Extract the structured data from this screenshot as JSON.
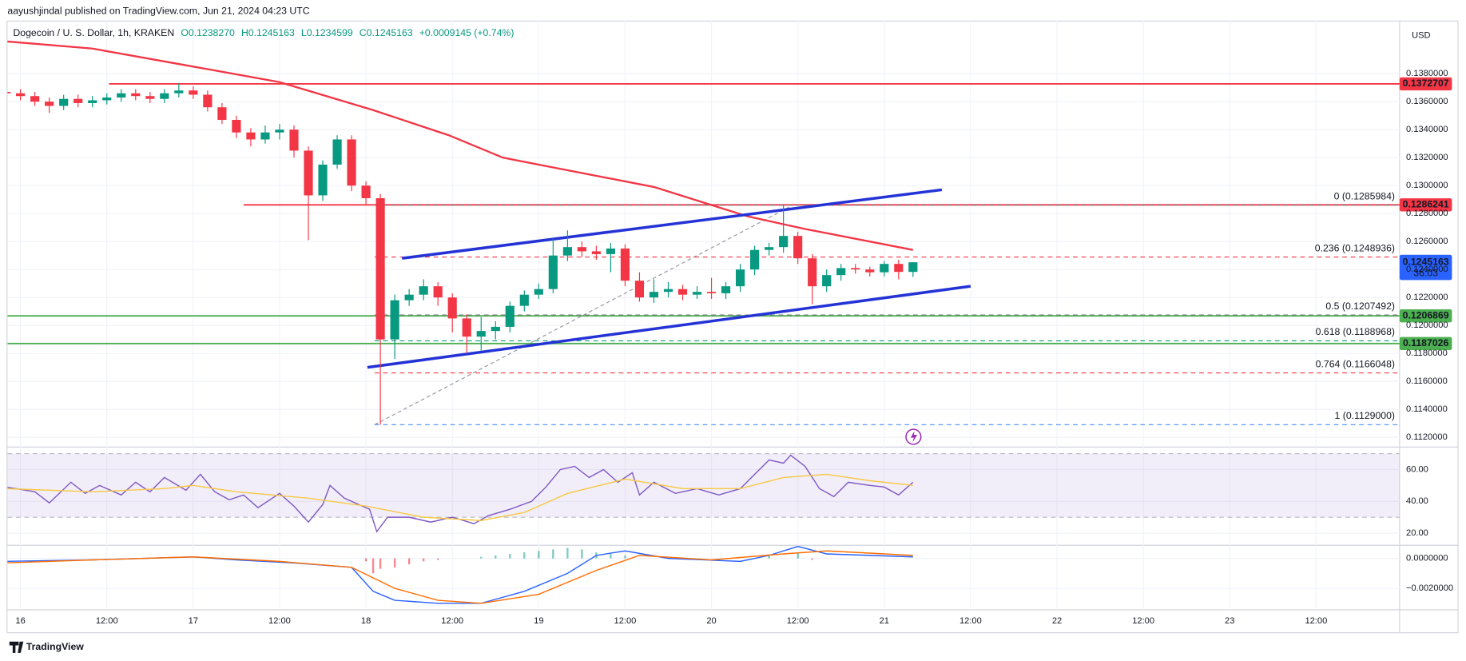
{
  "header": {
    "byline": "aayushjindal published on TradingView.com, Jun 21, 2024 04:23 UTC",
    "brand": "TradingView"
  },
  "chart_data": [
    {
      "type": "candlestick",
      "title": "Dogecoin / U. S. Dollar, 1h, KRAKEN",
      "ohlc": [
        "O0.1238270",
        "H0.1245163",
        "L0.1234599",
        "C0.1245163",
        "+0.0009145 (+0.74%)"
      ],
      "currency": "USD",
      "x": [
        -2,
        0,
        2,
        4,
        6,
        8,
        10,
        12,
        14,
        16,
        18,
        20,
        22,
        24,
        26,
        28,
        30,
        32,
        34,
        36,
        38,
        40,
        42,
        44,
        46,
        48,
        50,
        52,
        54,
        56,
        58,
        60,
        62,
        64,
        66,
        68,
        70,
        72,
        74,
        76,
        78,
        80,
        82,
        84,
        86,
        88,
        90,
        92,
        94,
        96,
        98,
        100,
        102,
        104,
        106,
        108,
        110,
        112,
        114,
        116,
        118,
        120,
        122,
        124
      ],
      "open": [
        0.1367,
        0.1366,
        0.1364,
        0.136,
        0.1357,
        0.1362,
        0.1359,
        0.1361,
        0.1363,
        0.1366,
        0.1364,
        0.1362,
        0.1366,
        0.1368,
        0.1365,
        0.1356,
        0.1347,
        0.1338,
        0.1333,
        0.1338,
        0.134,
        0.1325,
        0.1293,
        0.1315,
        0.1333,
        0.13,
        0.1291,
        0.119,
        0.1218,
        0.1222,
        0.1228,
        0.122,
        0.1205,
        0.1192,
        0.1196,
        0.1199,
        0.1214,
        0.1222,
        0.1226,
        0.125,
        0.1256,
        0.1253,
        0.1251,
        0.1255,
        0.1232,
        0.122,
        0.1224,
        0.1226,
        0.1222,
        0.1224,
        0.1223,
        0.1228,
        0.124,
        0.1254,
        0.1256,
        0.1264,
        0.1248,
        0.1228,
        0.1236,
        0.1241,
        0.124,
        0.1238,
        0.1244,
        0.123827
      ],
      "high": [
        0.137,
        0.1369,
        0.1367,
        0.1363,
        0.1365,
        0.1365,
        0.1364,
        0.1366,
        0.1369,
        0.1369,
        0.1367,
        0.1369,
        0.1373,
        0.1371,
        0.1368,
        0.1359,
        0.135,
        0.1341,
        0.1343,
        0.1344,
        0.1343,
        0.1328,
        0.1318,
        0.1336,
        0.1336,
        0.1303,
        0.1294,
        0.1222,
        0.1226,
        0.1233,
        0.1231,
        0.1223,
        0.1208,
        0.1206,
        0.1203,
        0.1217,
        0.1225,
        0.123,
        0.1262,
        0.1268,
        0.126,
        0.1257,
        0.1259,
        0.1258,
        0.1238,
        0.1233,
        0.1231,
        0.1229,
        0.1228,
        0.1234,
        0.1231,
        0.1244,
        0.1257,
        0.1259,
        0.1286,
        0.1267,
        0.1251,
        0.124,
        0.1244,
        0.1244,
        0.1242,
        0.1246,
        0.1247,
        0.1245163
      ],
      "low": [
        0.1363,
        0.1361,
        0.1357,
        0.1352,
        0.1354,
        0.1356,
        0.1356,
        0.1358,
        0.136,
        0.1361,
        0.1359,
        0.1359,
        0.1363,
        0.1362,
        0.1353,
        0.1344,
        0.1334,
        0.1328,
        0.133,
        0.1333,
        0.132,
        0.1261,
        0.1289,
        0.1312,
        0.1296,
        0.1286,
        0.1129,
        0.1176,
        0.1214,
        0.1218,
        0.1214,
        0.1195,
        0.118,
        0.1182,
        0.119,
        0.1195,
        0.121,
        0.1219,
        0.1223,
        0.1246,
        0.1249,
        0.1247,
        0.1238,
        0.1228,
        0.1217,
        0.1216,
        0.122,
        0.1218,
        0.1219,
        0.1219,
        0.1219,
        0.1224,
        0.1236,
        0.125,
        0.1252,
        0.1244,
        0.1215,
        0.1224,
        0.1232,
        0.1237,
        0.1235,
        0.1235,
        0.1233,
        0.1234599
      ],
      "close": [
        0.1366,
        0.1364,
        0.136,
        0.1357,
        0.1362,
        0.1359,
        0.1361,
        0.1363,
        0.1366,
        0.1364,
        0.1362,
        0.1366,
        0.1368,
        0.1365,
        0.1356,
        0.1347,
        0.1338,
        0.1333,
        0.1338,
        0.134,
        0.1325,
        0.1293,
        0.1315,
        0.1333,
        0.13,
        0.1291,
        0.119,
        0.1218,
        0.1222,
        0.1228,
        0.122,
        0.1205,
        0.1192,
        0.1196,
        0.1199,
        0.1214,
        0.1222,
        0.1226,
        0.125,
        0.1256,
        0.1253,
        0.1251,
        0.1255,
        0.1232,
        0.122,
        0.1224,
        0.1226,
        0.1222,
        0.1224,
        0.1223,
        0.1228,
        0.124,
        0.1254,
        0.1256,
        0.1264,
        0.1248,
        0.1228,
        0.1236,
        0.1241,
        0.124,
        0.1238,
        0.1244,
        0.123827,
        0.1245163
      ],
      "up_color": "#089981",
      "down_color": "#f23645",
      "xlim": [
        -1.8,
        191.6
      ],
      "ylim": [
        0.1113,
        0.1418
      ],
      "xticks": [
        {
          "value": 0,
          "label": "16"
        },
        {
          "value": 12,
          "label": "12:00"
        },
        {
          "value": 24,
          "label": "17"
        },
        {
          "value": 36,
          "label": "12:00"
        },
        {
          "value": 48,
          "label": "18"
        },
        {
          "value": 60,
          "label": "12:00"
        },
        {
          "value": 72,
          "label": "19"
        },
        {
          "value": 84,
          "label": "12:00"
        },
        {
          "value": 96,
          "label": "20"
        },
        {
          "value": 108,
          "label": "12:00"
        },
        {
          "value": 120,
          "label": "21"
        },
        {
          "value": 132,
          "label": "12:00"
        },
        {
          "value": 144,
          "label": "22"
        },
        {
          "value": 156,
          "label": "12:00"
        },
        {
          "value": 168,
          "label": "23"
        },
        {
          "value": 180,
          "label": "12:00"
        }
      ],
      "yticks": [
        {
          "value": 0.112,
          "label": "0.1120000"
        },
        {
          "value": 0.114,
          "label": "0.1140000"
        },
        {
          "value": 0.116,
          "label": "0.1160000"
        },
        {
          "value": 0.118,
          "label": "0.1180000"
        },
        {
          "value": 0.12,
          "label": "0.1200000"
        },
        {
          "value": 0.122,
          "label": "0.1220000"
        },
        {
          "value": 0.124,
          "label": "0.1240000"
        },
        {
          "value": 0.126,
          "label": "0.1260000"
        },
        {
          "value": 0.128,
          "label": "0.1280000"
        },
        {
          "value": 0.13,
          "label": "0.1300000"
        },
        {
          "value": 0.132,
          "label": "0.1320000"
        },
        {
          "value": 0.134,
          "label": "0.1340000"
        },
        {
          "value": 0.136,
          "label": "0.1360000"
        },
        {
          "value": 0.138,
          "label": "0.1380000"
        }
      ],
      "grid": true,
      "moving_average": {
        "color": "#f23645",
        "x": [
          -1.8,
          10,
          23,
          36,
          49,
          59.5,
          67,
          75,
          88,
          101,
          109,
          124
        ],
        "values": [
          0.1403,
          0.1398,
          0.1386,
          0.1374,
          0.1354,
          0.1336,
          0.132,
          0.1312,
          0.1299,
          0.1278,
          0.1269,
          0.1254
        ]
      },
      "trendlines": {
        "color": "#2433d6",
        "lines": [
          {
            "x": [
              53,
              128
            ],
            "y": [
              0.1248,
              0.1297
            ]
          },
          {
            "x": [
              48.2,
              132
            ],
            "y": [
              0.117,
              0.1228
            ]
          }
        ]
      },
      "levels": [
        {
          "value": 0.1372707,
          "color": "#f23645",
          "from": 12.3
        },
        {
          "value": 0.1286241,
          "color": "#f23645",
          "from": 31
        },
        {
          "value": 0.1206869,
          "color": "#4caf50",
          "from": -1.8
        },
        {
          "value": 0.1187026,
          "color": "#4caf50",
          "from": -1.8
        }
      ],
      "last_price": {
        "value": 0.1245163,
        "countdown": "36:03",
        "color": "#2962ff"
      },
      "fib": {
        "x": [
          49.2,
          107.3
        ],
        "y": [
          0.1129,
          0.1285984
        ],
        "levels": [
          {
            "label": "0 (0.1285984)",
            "value": 0.1285984,
            "color": "#787b86"
          },
          {
            "label": "0.236 (0.1248936)",
            "value": 0.1248936,
            "color": "#f23645"
          },
          {
            "label": "0.5 (0.1207492)",
            "value": 0.1207492,
            "color": "#787b86"
          },
          {
            "label": "0.618 (0.1188968)",
            "value": 0.1188968,
            "color": "#089981"
          },
          {
            "label": "0.764 (0.1166048)",
            "value": 0.1166048,
            "color": "#f23645"
          },
          {
            "label": "1 (0.1129000)",
            "value": 0.1129,
            "color": "#5b9cf6"
          }
        ]
      }
    },
    {
      "type": "line",
      "series": [
        {
          "color": "#7e57c2",
          "x": [
            -2,
            2,
            4,
            7,
            9,
            11,
            14,
            16,
            18,
            20,
            23,
            25,
            27,
            29,
            31,
            33,
            36,
            38,
            40,
            42,
            43,
            45,
            47,
            48.5,
            49.5,
            51,
            54,
            57,
            60,
            63,
            65,
            68,
            71,
            73,
            75,
            77,
            79,
            81,
            83,
            85,
            86,
            88,
            91,
            94,
            97,
            100,
            102,
            104,
            106,
            107,
            109,
            111,
            113,
            115,
            118,
            120,
            122,
            123,
            124
          ],
          "values": [
            49,
            46,
            39,
            52,
            45,
            50,
            44,
            52,
            46,
            55,
            47,
            57,
            46,
            41,
            44,
            36,
            45,
            37,
            27,
            38,
            50,
            42,
            38,
            35,
            21,
            30,
            30,
            27,
            30,
            26,
            31,
            35,
            40,
            49,
            60,
            62,
            55,
            60,
            52,
            58,
            44,
            52,
            45,
            48,
            44,
            48,
            57,
            66,
            64,
            69,
            62,
            48,
            43,
            52,
            50,
            49,
            44,
            48,
            52
          ]
        },
        {
          "color": "#f7c844",
          "x": [
            -2,
            10,
            20,
            24,
            30,
            40,
            48,
            56,
            64,
            70,
            76,
            84,
            92,
            100,
            106,
            112,
            118,
            124
          ],
          "values": [
            48,
            46,
            48,
            50,
            46,
            42,
            37,
            30,
            28,
            33,
            45,
            54,
            48,
            48,
            55,
            57,
            53,
            50
          ]
        }
      ],
      "band": [
        30,
        70
      ],
      "band_color": "#7e57c2",
      "ylim": [
        12.4,
        74.1
      ],
      "yticks": [
        {
          "value": 20,
          "label": "20.00"
        },
        {
          "value": 40,
          "label": "40.00"
        },
        {
          "value": 60,
          "label": "60.00"
        }
      ]
    },
    {
      "type": "line",
      "series": [
        {
          "color": "#2962ff",
          "x": [
            -2,
            10,
            24,
            30,
            38,
            46,
            49,
            52,
            58,
            64,
            70,
            76,
            80,
            84,
            90,
            100,
            104,
            108,
            112,
            118,
            124
          ],
          "values": [
            -0.0002,
            -0.0001,
            0.0001,
            -0.0001,
            -0.0003,
            -0.0006,
            -0.0022,
            -0.0028,
            -0.003,
            -0.003,
            -0.0022,
            -0.001,
            0.0002,
            0.0005,
            0,
            -0.0002,
            0.0002,
            0.0008,
            0.0003,
            0.0002,
            0.0001
          ]
        },
        {
          "color": "#ff6d00",
          "x": [
            -2,
            10,
            24,
            36,
            46,
            52,
            58,
            64,
            72,
            80,
            86,
            96,
            106,
            112,
            124
          ],
          "values": [
            -0.0003,
            -0.0001,
            0.0001,
            -0.0002,
            -0.0006,
            -0.002,
            -0.0028,
            -0.003,
            -0.0024,
            -0.0008,
            0.0002,
            -0.0001,
            0.0003,
            0.0005,
            0.0002
          ]
        }
      ],
      "histogram": {
        "up_color": "#26a69a",
        "down_color": "#f23645",
        "x": [
          48,
          49,
          50,
          52,
          54,
          56,
          58,
          64,
          66,
          68,
          70,
          72,
          74,
          76,
          78,
          80,
          82,
          84,
          104,
          108,
          110
        ],
        "values": [
          -0.0002,
          -0.001,
          -0.0007,
          -0.0006,
          -0.0004,
          -0.0002,
          -0.0001,
          0.0001,
          0.0002,
          0.0003,
          0.0004,
          0.0005,
          0.0006,
          0.0007,
          0.0006,
          0.0004,
          0.0003,
          0.0002,
          0.0002,
          0.0004,
          -0.0001
        ]
      },
      "ylim": [
        -0.00344,
        0.000875
      ],
      "yticks": [
        {
          "value": 0,
          "label": "0.0000000"
        },
        {
          "value": -0.002,
          "label": "−0.0020000"
        }
      ]
    }
  ]
}
